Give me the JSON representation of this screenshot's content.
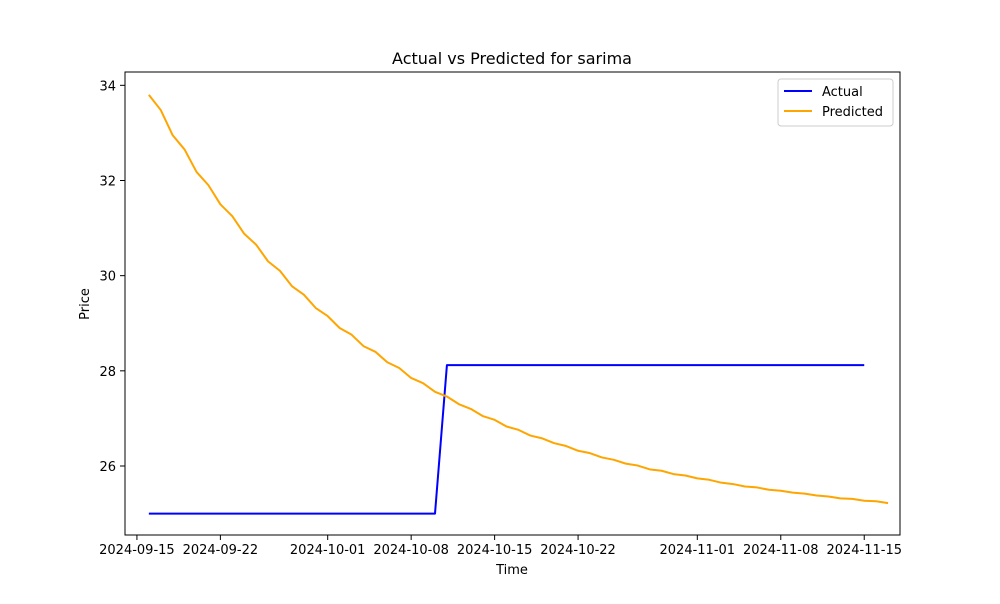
{
  "chart_data": {
    "type": "line",
    "title": "Actual vs Predicted for sarima",
    "xlabel": "Time",
    "ylabel": "Price",
    "x_ticks": [
      "2024-09-15",
      "2024-09-22",
      "2024-10-01",
      "2024-10-08",
      "2024-10-15",
      "2024-10-22",
      "2024-11-01",
      "2024-11-08",
      "2024-11-15"
    ],
    "y_ticks": [
      "26",
      "28",
      "30",
      "32",
      "34"
    ],
    "xlim": [
      "2024-09-14",
      "2024-11-18"
    ],
    "ylim": [
      24.55,
      34.28
    ],
    "grid": false,
    "legend_position": "top-right",
    "series": [
      {
        "name": "Actual",
        "color": "#0000ff",
        "x": [
          "2024-09-16",
          "2024-10-10",
          "2024-10-11",
          "2024-11-15"
        ],
        "y": [
          25.0,
          25.0,
          28.12,
          28.12
        ]
      },
      {
        "name": "Predicted",
        "color": "#ffa500",
        "start_date": "2024-09-16",
        "y": [
          33.8,
          33.48,
          32.95,
          32.65,
          32.18,
          31.9,
          31.5,
          31.25,
          30.88,
          30.65,
          30.3,
          30.1,
          29.78,
          29.6,
          29.32,
          29.15,
          28.9,
          28.76,
          28.52,
          28.4,
          28.18,
          28.06,
          27.85,
          27.74,
          27.56,
          27.46,
          27.3,
          27.2,
          27.05,
          26.97,
          26.83,
          26.76,
          26.64,
          26.58,
          26.48,
          26.42,
          26.32,
          26.27,
          26.18,
          26.13,
          26.05,
          26.01,
          25.93,
          25.9,
          25.83,
          25.8,
          25.74,
          25.71,
          25.65,
          25.62,
          25.57,
          25.55,
          25.5,
          25.48,
          25.44,
          25.42,
          25.38,
          25.36,
          25.32,
          25.31,
          25.27,
          25.26,
          25.22
        ]
      }
    ]
  }
}
